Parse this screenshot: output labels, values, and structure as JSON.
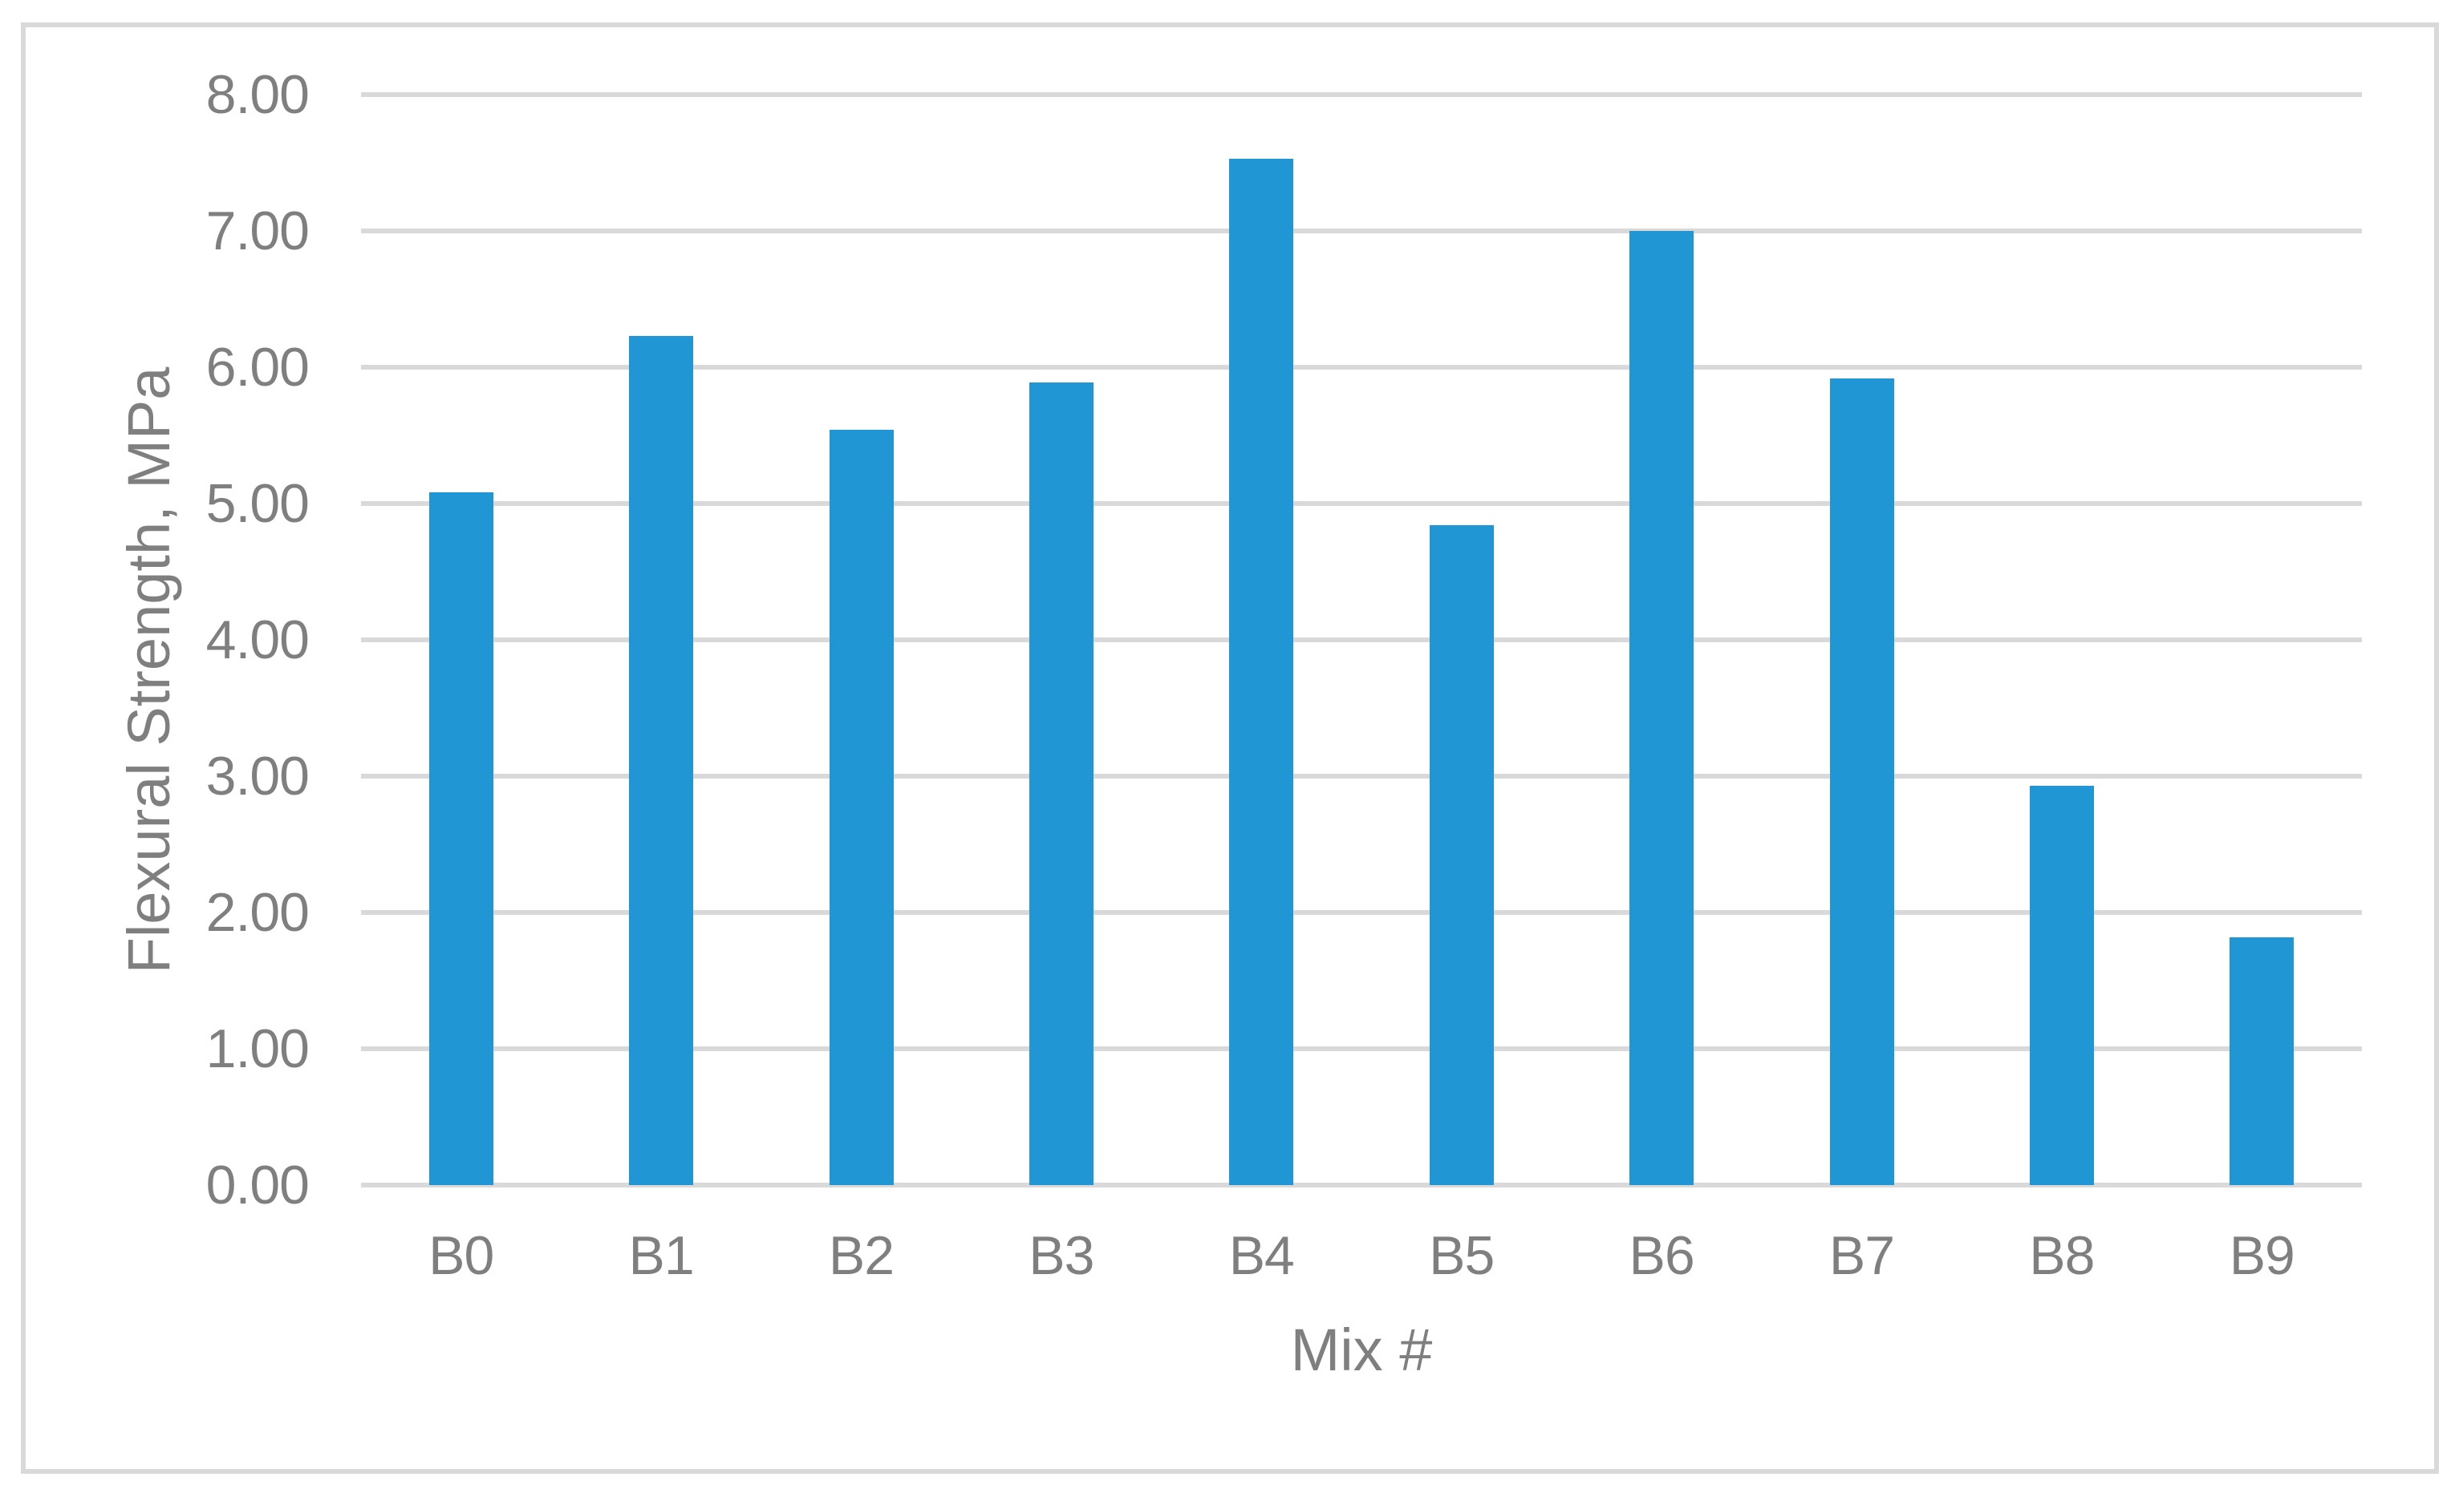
{
  "chart_data": {
    "type": "bar",
    "title": "",
    "categories": [
      "B0",
      "B1",
      "B2",
      "B3",
      "B4",
      "B5",
      "B6",
      "B7",
      "B8",
      "B9"
    ],
    "values": [
      5.08,
      6.23,
      5.54,
      5.89,
      7.53,
      4.84,
      7.0,
      5.92,
      2.93,
      1.82
    ],
    "xlabel": "Mix #",
    "ylabel": "Flexural Strength, MPa",
    "ylim": [
      0,
      8
    ],
    "ytick_step": 1,
    "ytick_labels": [
      "0.00",
      "1.00",
      "2.00",
      "3.00",
      "4.00",
      "5.00",
      "6.00",
      "7.00",
      "8.00"
    ],
    "grid": true,
    "legend": false,
    "bar_color": "#2097d4",
    "gridline_color": "#d9d9d9",
    "axis_text_color": "#7f7f7f",
    "border_color": "#d9d9d9",
    "background_color": "#ffffff"
  }
}
